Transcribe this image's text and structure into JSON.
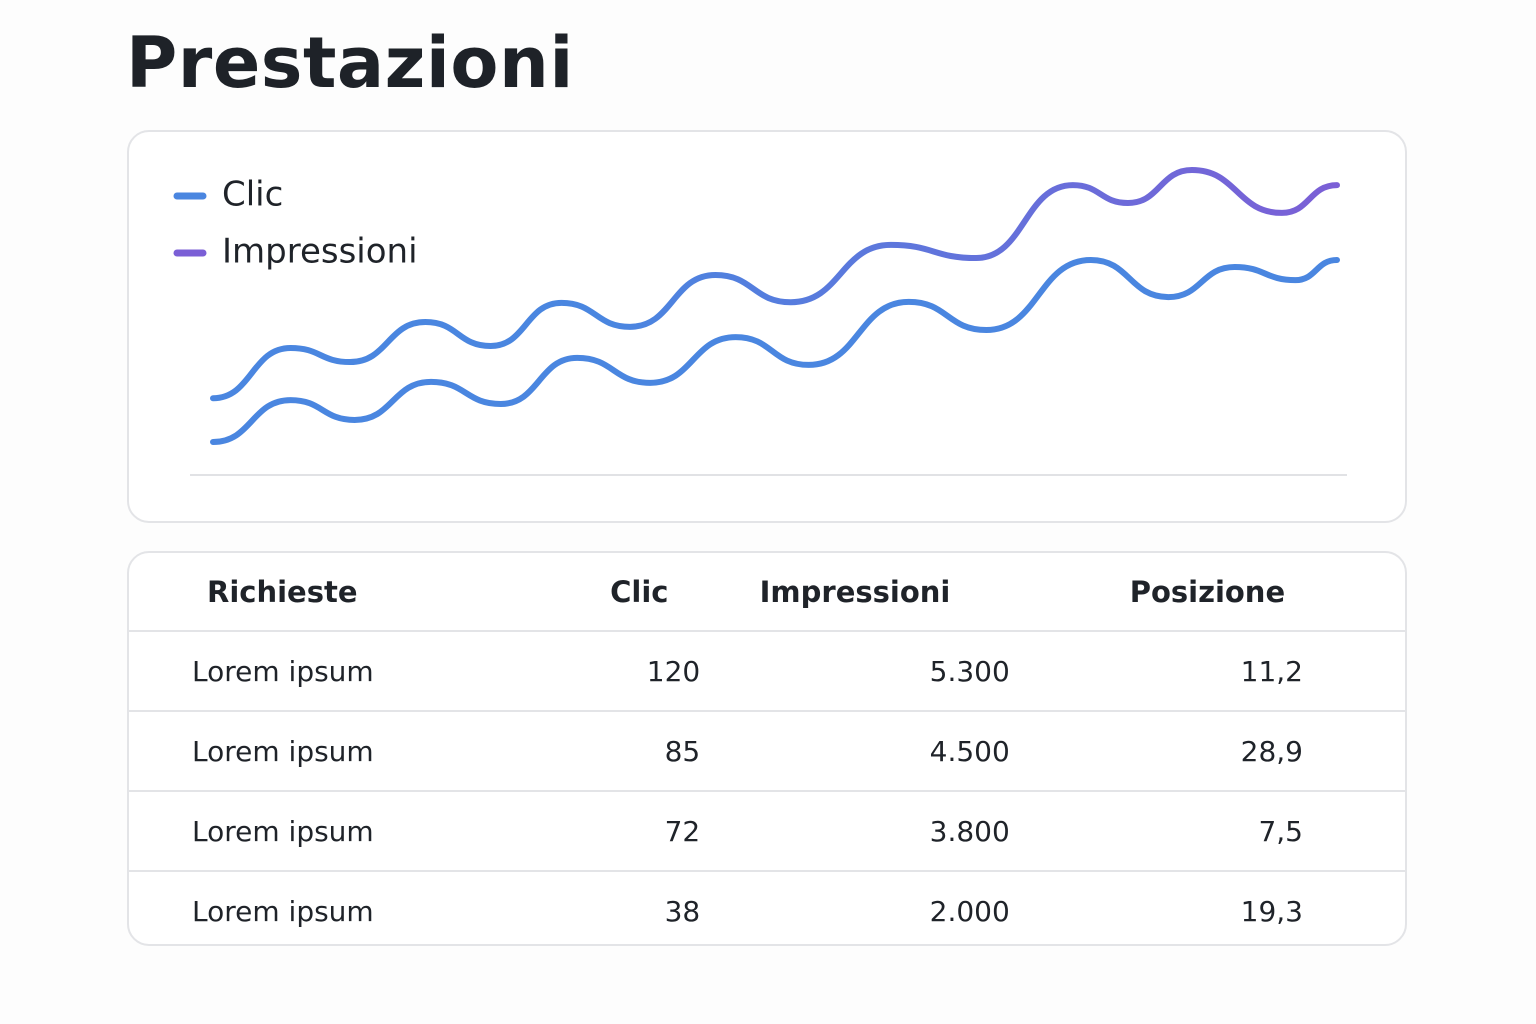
{
  "title": "Prestazioni",
  "chart_data": {
    "type": "line",
    "xlim": [
      0,
      100
    ],
    "ylim": [
      0,
      100
    ],
    "series": [
      {
        "name": "Clic",
        "color": "#4a86e0",
        "x": [
          0,
          6.9,
          12.6,
          19.4,
          25.6,
          32.4,
          38.9,
          46.5,
          53,
          61.9,
          68.8,
          78.1,
          85,
          90.9,
          96.3,
          100
        ],
        "values": [
          10.3,
          23.4,
          17.2,
          29.1,
          22.2,
          36.6,
          28.8,
          43.1,
          34.4,
          54.1,
          45.3,
          67.2,
          55.6,
          65,
          60.9,
          67.2
        ]
      },
      {
        "name": "Impressioni",
        "color": "#7b5fd6",
        "x": [
          0,
          6.9,
          12.2,
          18.9,
          24.7,
          31,
          37.1,
          44.7,
          51.4,
          60.3,
          67.9,
          76.5,
          81.4,
          87.1,
          95.1,
          100
        ],
        "values": [
          24,
          39.7,
          35.3,
          47.8,
          40.3,
          53.8,
          46.3,
          62.5,
          54,
          71.9,
          67.8,
          90.6,
          85,
          95.3,
          81.9,
          90.6
        ]
      }
    ]
  },
  "table": {
    "header": [
      "Richieste",
      "Clic",
      "Impressioni",
      "Posizione"
    ],
    "rows": [
      [
        "Lorem ipsum",
        "120",
        "5.300",
        "11,2"
      ],
      [
        "Lorem ipsum",
        "85",
        "4.500",
        "28,9"
      ],
      [
        "Lorem ipsum",
        "72",
        "3.800",
        "7,5"
      ],
      [
        "Lorem ipsum",
        "38",
        "2.000",
        "19,3"
      ]
    ]
  }
}
